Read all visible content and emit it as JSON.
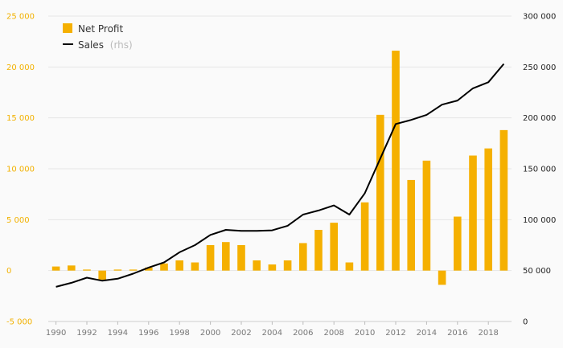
{
  "chart_data": {
    "type": "bar",
    "title": "",
    "xlabel": "",
    "ylabel": "",
    "categories": [
      1990,
      1991,
      1992,
      1993,
      1994,
      1995,
      1996,
      1997,
      1998,
      1999,
      2000,
      2001,
      2002,
      2003,
      2004,
      2005,
      2006,
      2007,
      2008,
      2009,
      2010,
      2011,
      2012,
      2013,
      2014,
      2015,
      2016,
      2017,
      2018,
      2019
    ],
    "x_tick_labels": [
      "1990",
      "1992",
      "1994",
      "1996",
      "1998",
      "2000",
      "2002",
      "2004",
      "2006",
      "2008",
      "2010",
      "2012",
      "2014",
      "2016",
      "2018"
    ],
    "ylim_left": [
      -5000,
      25000
    ],
    "ylim_right": [
      0,
      300000
    ],
    "y_left_ticks": [
      -5000,
      0,
      5000,
      10000,
      15000,
      20000,
      25000
    ],
    "y_left_tick_labels": [
      "-5 000",
      "0",
      "5 000",
      "10 000",
      "15 000",
      "20 000",
      "25 000"
    ],
    "y_right_ticks": [
      0,
      50000,
      100000,
      150000,
      200000,
      250000,
      300000
    ],
    "y_right_tick_labels": [
      "0",
      "50 000",
      "100 000",
      "150 000",
      "200 000",
      "250 000",
      "300 000"
    ],
    "grid": true,
    "legend_position": "top-left",
    "series": [
      {
        "name": "Net Profit",
        "type": "bar",
        "axis": "left",
        "color": "#f5b000",
        "values": [
          400,
          500,
          100,
          -900,
          100,
          100,
          300,
          700,
          1000,
          800,
          2500,
          2800,
          2500,
          1000,
          600,
          1000,
          2700,
          4000,
          4700,
          800,
          6700,
          15300,
          21600,
          8900,
          10800,
          -1400,
          5300,
          11300,
          12000,
          13800
        ]
      },
      {
        "name": "Sales",
        "name_suffix": "(rhs)",
        "type": "line",
        "axis": "right",
        "color": "#000000",
        "values": [
          34000,
          38000,
          43000,
          40000,
          42000,
          47000,
          53000,
          58000,
          68000,
          75000,
          85000,
          90000,
          89000,
          89000,
          89500,
          94000,
          105000,
          109000,
          114000,
          105000,
          126000,
          160000,
          194000,
          198000,
          203000,
          213000,
          217000,
          229000,
          235000,
          253000
        ]
      }
    ]
  }
}
